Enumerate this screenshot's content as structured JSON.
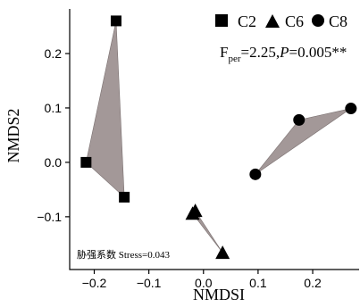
{
  "chart_data": {
    "type": "scatter",
    "xlabel": "NMDSI",
    "ylabel": "NMDS2",
    "xlim": [
      -0.245,
      0.285
    ],
    "ylim": [
      -0.197,
      0.282
    ],
    "xticks": [
      -0.2,
      -0.1,
      0.0,
      0.1,
      0.2
    ],
    "yticks": [
      0.2,
      0.1,
      0.0,
      -0.1
    ],
    "xtick_labels": [
      "−0.2",
      "−0.1",
      "0.0",
      "0.1",
      "0.2"
    ],
    "ytick_labels": [
      "0.2",
      "0.1",
      "0.0",
      "−0.1"
    ],
    "legend_position": "top-right",
    "series": [
      {
        "name": "C2",
        "marker": "square",
        "hull": true,
        "x": [
          -0.16,
          -0.215,
          -0.145
        ],
        "y": [
          0.26,
          0.0,
          -0.064
        ]
      },
      {
        "name": "C6",
        "marker": "triangle",
        "hull": true,
        "x": [
          -0.015,
          -0.02,
          0.035
        ],
        "y": [
          -0.089,
          -0.094,
          -0.166
        ]
      },
      {
        "name": "C8",
        "marker": "circle",
        "hull": true,
        "x": [
          0.27,
          0.175,
          0.095
        ],
        "y": [
          0.099,
          0.078,
          -0.022
        ]
      }
    ],
    "stats": {
      "F_label": "F",
      "F_sub": "per",
      "F_value": "=2.25,",
      "P_label": "P",
      "P_value": "=0.005**"
    },
    "stress_label": "胁强系数 Stress=0.043",
    "colors": {
      "hull_fill": "#a39898",
      "hull_stroke": "#7a7070",
      "marker": "#000000"
    }
  }
}
